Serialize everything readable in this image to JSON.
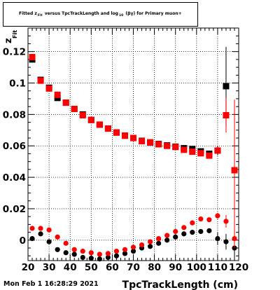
{
  "chart_data": {
    "type": "scatter",
    "title_parts": {
      "before_z": "Fitted  z",
      "z_sub": "Fit",
      "middle": "versus TpcTrackLength and log",
      "log_sub": "10",
      "after": "(",
      "after2": ") for Primary muon+"
    },
    "xlabel": "TpcTrackLength (cm)",
    "ylabel": "z",
    "ylabel_sub": "Fit",
    "xlim": [
      20,
      120
    ],
    "ylim": [
      -0.013,
      0.135
    ],
    "x_ticks": [
      20,
      30,
      40,
      50,
      60,
      70,
      80,
      90,
      100,
      110,
      120
    ],
    "x_tick_labels": [
      "20",
      "30",
      "40",
      "50",
      "60",
      "70",
      "80",
      "90",
      "100",
      "110",
      "120"
    ],
    "y_ticks": [
      0,
      0.02,
      0.04,
      0.06,
      0.08,
      0.1,
      0.12
    ],
    "y_tick_labels": [
      "0",
      "0.02",
      "0.04",
      "0.06",
      "0.08",
      "0.1",
      "0.12"
    ],
    "grid": true,
    "colors": {
      "black_series": "#000000",
      "red_series": "#ff0000"
    },
    "series": [
      {
        "marker": "square",
        "color": "#000000",
        "x": [
          22,
          26,
          30,
          34,
          38,
          42,
          46,
          50,
          54,
          58,
          62,
          66,
          70,
          74,
          78,
          82,
          86,
          90,
          94,
          98,
          102,
          106,
          110,
          114
        ],
        "y": [
          0.115,
          0.102,
          0.097,
          0.0905,
          0.0875,
          0.0835,
          0.08,
          0.0765,
          0.0735,
          0.071,
          0.0685,
          0.0665,
          0.065,
          0.0632,
          0.0622,
          0.0612,
          0.0603,
          0.0595,
          0.0585,
          0.058,
          0.0565,
          0.055,
          0.057,
          0.098
        ],
        "yerr": [
          0.002,
          0.001,
          0.001,
          0.001,
          0.001,
          0.001,
          0.001,
          0.001,
          0.001,
          0.001,
          0.001,
          0.001,
          0.001,
          0.001,
          0.001,
          0.001,
          0.001,
          0.001,
          0.001,
          0.001,
          0.001,
          0.001,
          0.003,
          0.025
        ]
      },
      {
        "marker": "square",
        "color": "#ff0000",
        "x": [
          22,
          26,
          30,
          34,
          38,
          42,
          46,
          50,
          54,
          58,
          62,
          66,
          70,
          74,
          78,
          82,
          86,
          90,
          94,
          98,
          102,
          106,
          110,
          114,
          118
        ],
        "y": [
          0.1165,
          0.1015,
          0.0965,
          0.0925,
          0.0875,
          0.0835,
          0.0795,
          0.0765,
          0.0735,
          0.071,
          0.0685,
          0.0665,
          0.065,
          0.063,
          0.0622,
          0.061,
          0.06,
          0.0593,
          0.0575,
          0.0563,
          0.0553,
          0.0538,
          0.057,
          0.0795,
          0.0445
        ],
        "yerr": [
          0.002,
          0.001,
          0.001,
          0.001,
          0.001,
          0.001,
          0.001,
          0.001,
          0.001,
          0.001,
          0.001,
          0.001,
          0.001,
          0.001,
          0.001,
          0.001,
          0.001,
          0.001,
          0.001,
          0.001,
          0.001,
          0.001,
          0.002,
          0.011,
          0.045
        ]
      },
      {
        "marker": "circle",
        "color": "#000000",
        "x": [
          22,
          26,
          30,
          34,
          38,
          42,
          46,
          50,
          54,
          58,
          62,
          66,
          70,
          74,
          78,
          82,
          86,
          90,
          94,
          98,
          102,
          106,
          110,
          114,
          118
        ],
        "y": [
          0.001,
          0.004,
          -0.001,
          -0.006,
          -0.008,
          -0.009,
          -0.011,
          -0.0115,
          -0.012,
          -0.011,
          -0.01,
          -0.0085,
          -0.007,
          -0.005,
          -0.004,
          -0.002,
          0.0,
          0.002,
          0.004,
          0.005,
          0.0055,
          0.006,
          0.001,
          -0.001,
          -0.005
        ],
        "yerr": [
          0.001,
          0.001,
          0.001,
          0.001,
          0.001,
          0.001,
          0.001,
          0.001,
          0.001,
          0.001,
          0.001,
          0.001,
          0.001,
          0.001,
          0.001,
          0.001,
          0.001,
          0.001,
          0.001,
          0.001,
          0.001,
          0.001,
          0.004,
          0.005,
          0.008
        ]
      },
      {
        "marker": "circle",
        "color": "#ff0000",
        "x": [
          22,
          26,
          30,
          34,
          38,
          42,
          46,
          50,
          54,
          58,
          62,
          66,
          70,
          74,
          78,
          82,
          86,
          90,
          94,
          98,
          102,
          106,
          110,
          114,
          118
        ],
        "y": [
          0.0075,
          0.0075,
          0.0065,
          0.002,
          -0.002,
          -0.006,
          -0.007,
          -0.008,
          -0.009,
          -0.0085,
          -0.007,
          -0.006,
          -0.0045,
          -0.003,
          -0.001,
          0.001,
          0.003,
          0.0055,
          0.008,
          0.011,
          0.0135,
          0.013,
          0.0155,
          0.012,
          0.001
        ],
        "yerr": [
          0.001,
          0.001,
          0.001,
          0.001,
          0.001,
          0.001,
          0.001,
          0.001,
          0.001,
          0.001,
          0.001,
          0.001,
          0.001,
          0.001,
          0.001,
          0.001,
          0.001,
          0.001,
          0.001,
          0.001,
          0.001,
          0.001,
          0.002,
          0.004,
          0.006
        ]
      }
    ]
  },
  "footer": {
    "timestamp": "Mon Feb  1 16:28:29 2021"
  }
}
